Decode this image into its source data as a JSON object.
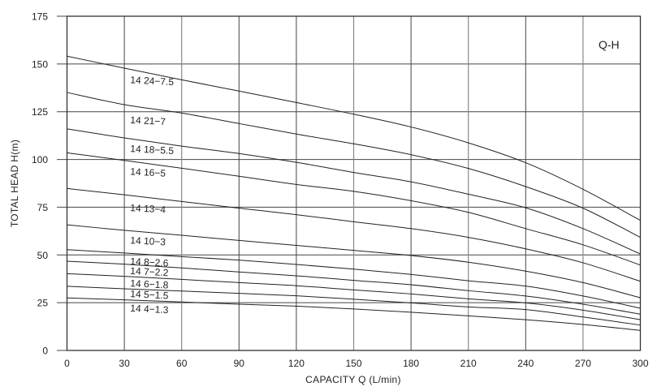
{
  "chart_data": {
    "type": "line",
    "title": "Q-H",
    "xlabel": "CAPACITY  Q (L/min)",
    "ylabel": "TOTAL HEAD  H(m)",
    "xlim": [
      0,
      300
    ],
    "ylim": [
      0,
      175
    ],
    "grid": true,
    "x_ticks": [
      0,
      30,
      60,
      90,
      120,
      150,
      180,
      210,
      240,
      270,
      300
    ],
    "y_ticks": [
      0,
      25,
      50,
      75,
      100,
      125,
      150,
      175
    ],
    "x": [
      0,
      30,
      60,
      90,
      120,
      150,
      180,
      210,
      240,
      270,
      300
    ],
    "series": [
      {
        "name": "14 24-7.5",
        "values": [
          154.1,
          147.8,
          141.7,
          135.8,
          129.8,
          123.7,
          117.0,
          108.7,
          98.3,
          84.4,
          68.1
        ],
        "label_pos": [
          33,
          140
        ]
      },
      {
        "name": "14 21-7",
        "values": [
          135.1,
          128.7,
          124.3,
          118.8,
          113.3,
          108.2,
          102.5,
          95.3,
          85.8,
          74.5,
          59.2
        ],
        "label_pos": [
          33,
          119
        ]
      },
      {
        "name": "14 18-5.5",
        "values": [
          116.0,
          111.3,
          107.0,
          103.1,
          98.5,
          93.2,
          88.3,
          81.8,
          74.7,
          63.8,
          50.5
        ],
        "label_pos": [
          33,
          104
        ]
      },
      {
        "name": "14 16-5",
        "values": [
          103.5,
          99.5,
          95.4,
          91.2,
          86.9,
          83.3,
          78.4,
          72.3,
          63.8,
          55.3,
          44.7
        ],
        "label_pos": [
          33,
          92
        ]
      },
      {
        "name": "14 13-4",
        "values": [
          84.8,
          81.5,
          78.0,
          74.5,
          71.1,
          67.4,
          63.8,
          59.2,
          53.2,
          45.9,
          36.2
        ],
        "label_pos": [
          33,
          73
        ]
      },
      {
        "name": "14 10-3",
        "values": [
          65.8,
          62.9,
          60.3,
          57.6,
          55.0,
          52.4,
          49.7,
          46.2,
          41.5,
          35.5,
          27.6
        ],
        "label_pos": [
          33,
          56
        ]
      },
      {
        "name": "14 8-2.6",
        "values": [
          52.8,
          51.0,
          49.1,
          47.3,
          45.0,
          42.6,
          39.8,
          36.5,
          33.7,
          28.5,
          22.1
        ],
        "label_pos": [
          33,
          45
        ]
      },
      {
        "name": "14 7-2.2",
        "values": [
          46.7,
          45.2,
          43.2,
          41.1,
          39.1,
          36.7,
          34.4,
          31.3,
          28.5,
          24.2,
          19.0
        ],
        "label_pos": [
          33,
          40
        ]
      },
      {
        "name": "14 6-1.8",
        "values": [
          40.2,
          38.8,
          37.2,
          35.5,
          33.9,
          31.7,
          29.6,
          27.0,
          24.9,
          21.1,
          16.1
        ],
        "label_pos": [
          33,
          33.5
        ]
      },
      {
        "name": "14 5-1.5",
        "values": [
          33.6,
          32.3,
          31.1,
          29.9,
          28.6,
          26.8,
          24.9,
          22.8,
          21.4,
          17.5,
          13.3
        ],
        "label_pos": [
          33,
          28
        ]
      },
      {
        "name": "14 4-1.3",
        "values": [
          27.5,
          26.5,
          25.4,
          24.2,
          23.2,
          21.7,
          20.0,
          18.1,
          16.1,
          13.6,
          10.5
        ],
        "label_pos": [
          33,
          20.5
        ]
      }
    ]
  }
}
